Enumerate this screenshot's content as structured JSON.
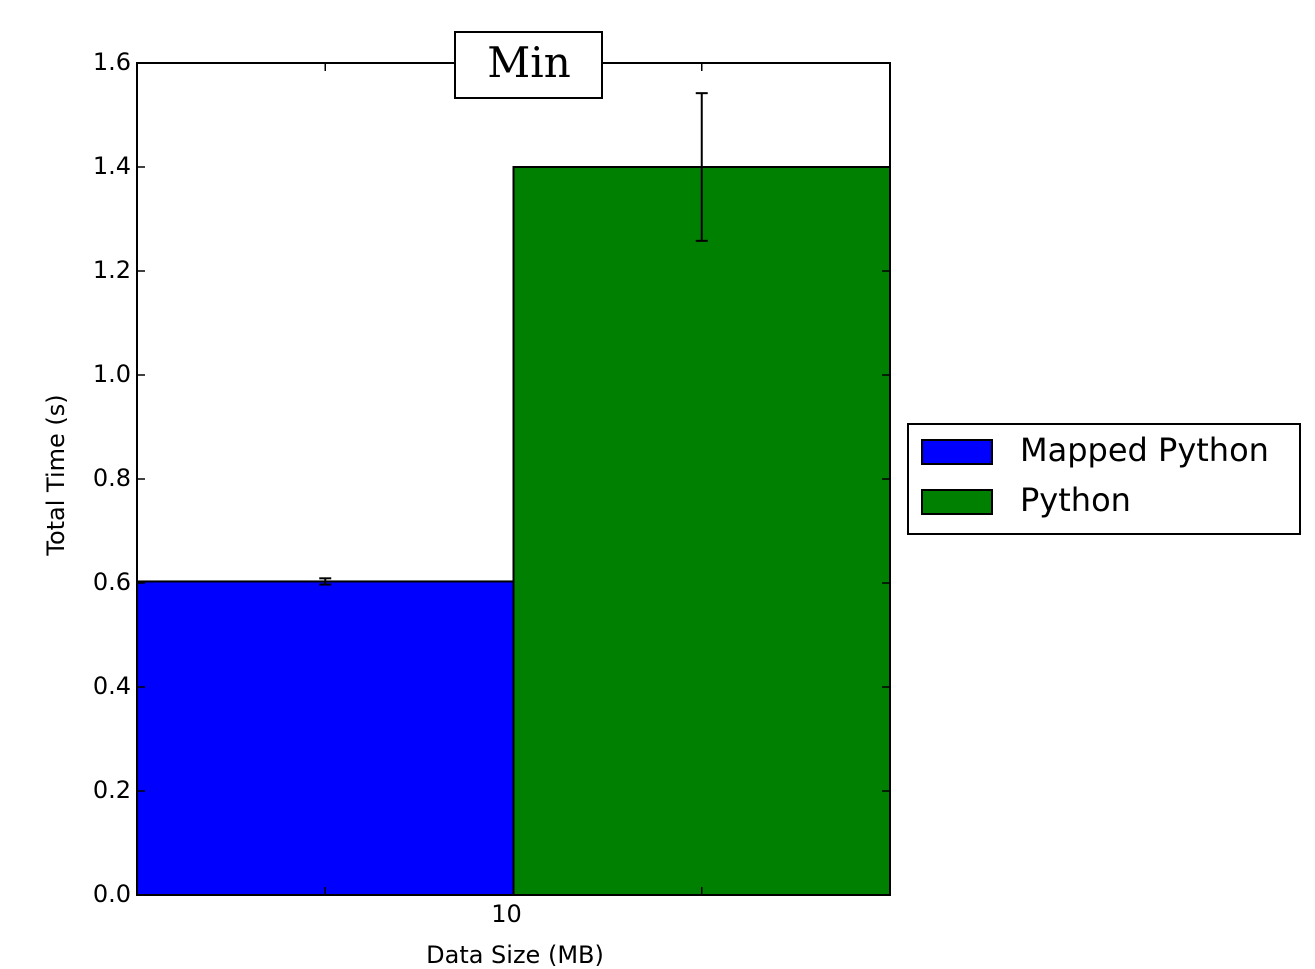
{
  "chart_data": {
    "type": "bar",
    "title": "Min",
    "x_label": "Data Size (MB)",
    "y_label": "Total Time (s)",
    "categories": [
      "10"
    ],
    "series": [
      {
        "name": "Mapped Python",
        "color": "#0000ff",
        "values": [
          0.603
        ],
        "errors": [
          0.006
        ]
      },
      {
        "name": "Python",
        "color": "#008000",
        "values": [
          1.4
        ],
        "errors": [
          0.142
        ]
      }
    ],
    "ylim": [
      0,
      1.6
    ],
    "yticks": [
      {
        "value": 0,
        "label": "0.0"
      },
      {
        "value": 0.2,
        "label": "0.2"
      },
      {
        "value": 0.4,
        "label": "0.4"
      },
      {
        "value": 0.6,
        "label": "0.6"
      },
      {
        "value": 0.8,
        "label": "0.8"
      },
      {
        "value": 1.0,
        "label": "1.0"
      },
      {
        "value": 1.2,
        "label": "1.2"
      },
      {
        "value": 1.4,
        "label": "1.4"
      },
      {
        "value": 1.6,
        "label": "1.6"
      }
    ],
    "legend": "outside-right",
    "grid": false
  }
}
